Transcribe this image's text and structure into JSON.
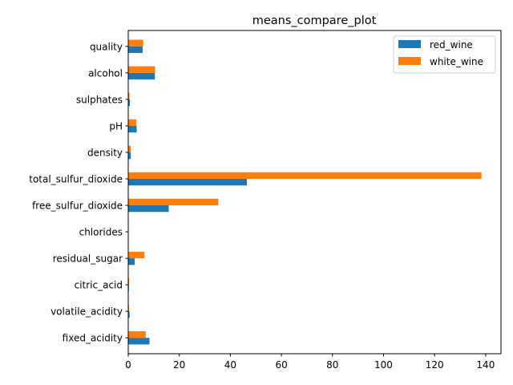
{
  "chart_data": {
    "type": "bar",
    "orientation": "horizontal",
    "title": "means_compare_plot",
    "xlabel": "",
    "ylabel": "",
    "categories": [
      "fixed_acidity",
      "volatile_acidity",
      "citric_acid",
      "residual_sugar",
      "chlorides",
      "free_sulfur_dioxide",
      "total_sulfur_dioxide",
      "density",
      "pH",
      "sulphates",
      "alcohol",
      "quality"
    ],
    "series": [
      {
        "name": "red_wine",
        "color": "#1f77b4",
        "values": [
          8.32,
          0.53,
          0.27,
          2.54,
          0.087,
          15.87,
          46.47,
          0.997,
          3.31,
          0.66,
          10.42,
          5.64
        ]
      },
      {
        "name": "white_wine",
        "color": "#ff7f0e",
        "values": [
          6.85,
          0.28,
          0.33,
          6.39,
          0.046,
          35.31,
          138.36,
          0.994,
          3.19,
          0.49,
          10.51,
          5.88
        ]
      }
    ],
    "xlim": [
      0,
      146
    ],
    "xticks": [
      0,
      20,
      40,
      60,
      80,
      100,
      120,
      140
    ],
    "grid": false,
    "legend_position": "top-right"
  }
}
